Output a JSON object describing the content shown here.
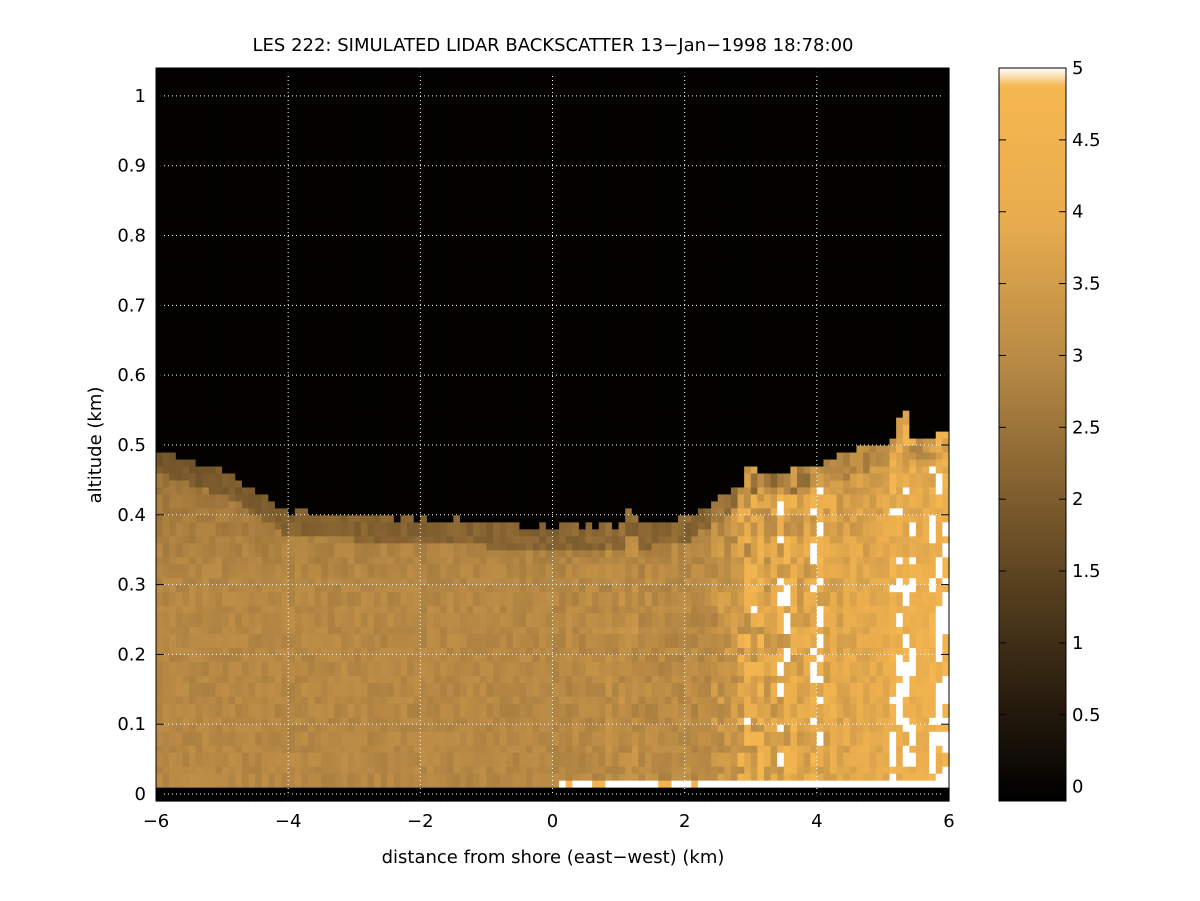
{
  "chart_data": {
    "type": "heatmap",
    "title": "LES 222: SIMULATED LIDAR BACKSCATTER 13−Jan−1998 18:78:00",
    "xlabel": "distance from shore (east−west) (km)",
    "ylabel": "altitude (km)",
    "xlim": [
      -6,
      6
    ],
    "ylim": [
      -0.01,
      1.04
    ],
    "x_ticks": [
      -6,
      -4,
      -2,
      0,
      2,
      4,
      6
    ],
    "x_tick_labels": [
      "−6",
      "−4",
      "−2",
      "0",
      "2",
      "4",
      "6"
    ],
    "y_ticks": [
      0,
      0.1,
      0.2,
      0.3,
      0.4,
      0.5,
      0.6,
      0.7,
      0.8,
      0.9,
      1
    ],
    "y_tick_labels": [
      "0",
      "0.1",
      "0.2",
      "0.3",
      "0.4",
      "0.5",
      "0.6",
      "0.7",
      "0.8",
      "0.9",
      "1"
    ],
    "grid": true,
    "colorbar": {
      "range": [
        -0.1,
        5
      ],
      "ticks": [
        0,
        0.5,
        1,
        1.5,
        2,
        2.5,
        3,
        3.5,
        4,
        4.5,
        5
      ],
      "tick_labels": [
        "0",
        "0.5",
        "1",
        "1.5",
        "2",
        "2.5",
        "3",
        "3.5",
        "4",
        "4.5",
        "5"
      ],
      "colors": [
        "#000000",
        "#3a2a14",
        "#7a5a2c",
        "#b88a45",
        "#e9ad4e",
        "#f7b84f",
        "#ffffff"
      ]
    },
    "field_description": {
      "boundary_layer_top_km": {
        "x": [
          -6,
          -5,
          -4,
          -2,
          0,
          1,
          2,
          3,
          4,
          5,
          6
        ],
        "z": [
          0.49,
          0.46,
          0.4,
          0.39,
          0.38,
          0.38,
          0.39,
          0.45,
          0.47,
          0.5,
          0.51
        ]
      },
      "plume_peaks": [
        {
          "x_km": 1.2,
          "top_km": 0.42
        },
        {
          "x_km": 3.0,
          "top_km": 0.48
        },
        {
          "x_km": 3.5,
          "top_km": 0.46
        },
        {
          "x_km": 4.0,
          "top_km": 0.43
        },
        {
          "x_km": 5.3,
          "top_km": 0.56
        },
        {
          "x_km": 5.9,
          "top_km": 0.51
        }
      ]
    }
  }
}
